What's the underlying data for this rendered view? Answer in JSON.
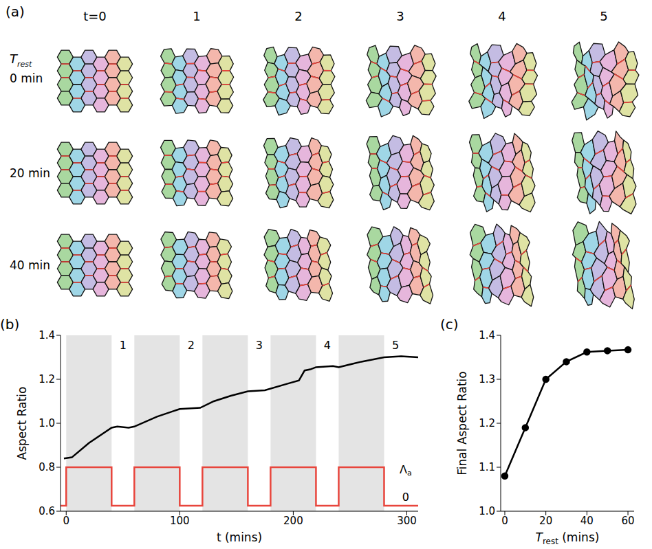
{
  "panel_a": {
    "label": "(a)",
    "column_heads": [
      "t=0",
      "1",
      "2",
      "3",
      "4",
      "5"
    ],
    "row_head": {
      "text": "T",
      "sub": "rest"
    },
    "row_labels": [
      "0 min",
      "20 min",
      "40 min"
    ]
  },
  "chart_data": [
    {
      "type": "line",
      "panel_label": "(b)",
      "xlabel": "t (mins)",
      "ylabel": "Aspect Ratio",
      "xlim": [
        -5,
        310
      ],
      "xticks": [
        0,
        100,
        200,
        300
      ],
      "ylim": [
        0.6,
        1.4
      ],
      "yticks": [
        0.6,
        0.8,
        {
          "value": 1,
          "label": "1.0"
        },
        1.2,
        1.4
      ],
      "shaded_intervals": [
        [
          0,
          40
        ],
        [
          60,
          100
        ],
        [
          120,
          160
        ],
        [
          180,
          220
        ],
        [
          240,
          280
        ]
      ],
      "series": [
        {
          "color": "#000000",
          "line_style": "solid",
          "x": [
            -2,
            5,
            20,
            40,
            45,
            55,
            60,
            80,
            100,
            118,
            130,
            145,
            160,
            175,
            195,
            205,
            210,
            215,
            220,
            235,
            240,
            260,
            280,
            295,
            310
          ],
          "values": [
            0.84,
            0.845,
            0.91,
            0.98,
            0.985,
            0.98,
            0.985,
            1.03,
            1.065,
            1.07,
            1.1,
            1.125,
            1.145,
            1.15,
            1.18,
            1.195,
            1.24,
            1.245,
            1.255,
            1.26,
            1.255,
            1.28,
            1.3,
            1.305,
            1.3
          ]
        },
        {
          "color": "#e8453c",
          "line_style": "step",
          "x": [
            -5,
            0,
            40,
            60,
            100,
            120,
            160,
            180,
            220,
            240,
            280,
            310
          ],
          "values": [
            0.625,
            0.8,
            0.625,
            0.8,
            0.625,
            0.8,
            0.625,
            0.8,
            0.625,
            0.8,
            0.625,
            0.625
          ]
        }
      ],
      "annotations": [
        {
          "text": "1",
          "x": 50,
          "y": 1.355
        },
        {
          "text": "2",
          "x": 110,
          "y": 1.355
        },
        {
          "text": "3",
          "x": 170,
          "y": 1.355
        },
        {
          "text": "4",
          "x": 230,
          "y": 1.355
        },
        {
          "text": "5",
          "x": 290,
          "y": 1.355
        },
        {
          "text": "Λ",
          "sub": "a",
          "x": 299,
          "y": 0.79
        },
        {
          "text": "0",
          "x": 299,
          "y": 0.665
        }
      ]
    },
    {
      "type": "line",
      "panel_label": "(c)",
      "xlabel": {
        "text": "T",
        "sub": "rest",
        "after": " (mins)"
      },
      "ylabel": "Final Aspect Ratio",
      "xlim": [
        -2,
        63
      ],
      "xticks": [
        0,
        20,
        40,
        60
      ],
      "ylim": [
        1.0,
        1.4
      ],
      "yticks": [
        {
          "value": 1,
          "label": "1.0"
        },
        1.1,
        1.2,
        1.3,
        1.4
      ],
      "series": [
        {
          "color": "#000000",
          "marker": "circle",
          "line_style": "solid",
          "x": [
            0,
            10,
            20,
            30,
            40,
            50,
            60
          ],
          "values": [
            1.08,
            1.19,
            1.3,
            1.34,
            1.362,
            1.365,
            1.367
          ]
        }
      ]
    }
  ]
}
